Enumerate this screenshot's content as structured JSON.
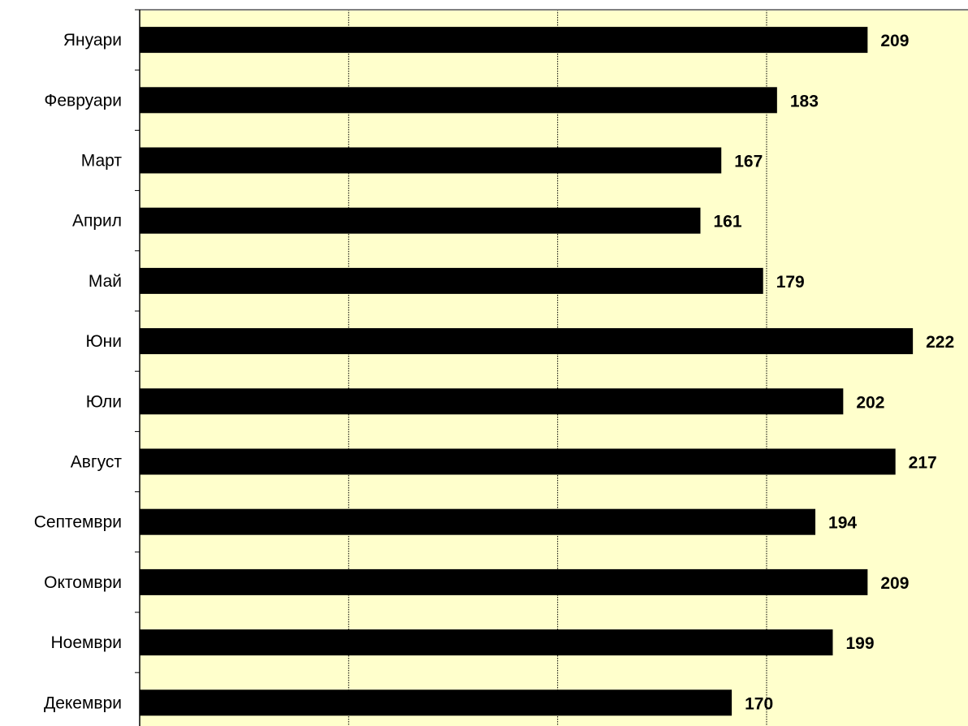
{
  "chart_data": {
    "type": "bar",
    "orientation": "horizontal",
    "categories": [
      "Януари",
      "Февруари",
      "Март",
      "Април",
      "Май",
      "Юни",
      "Юли",
      "Август",
      "Септември",
      "Октомври",
      "Ноември",
      "Декември"
    ],
    "values": [
      209,
      183,
      167,
      161,
      179,
      222,
      202,
      217,
      194,
      209,
      199,
      170
    ],
    "xlim": [
      0,
      240
    ],
    "grid": true,
    "legend": "none",
    "data_labels": true,
    "colors": {
      "bar": "#000000",
      "plot_background": "#FFFFCC",
      "gridline": "#000000",
      "axis": "#808080"
    }
  }
}
